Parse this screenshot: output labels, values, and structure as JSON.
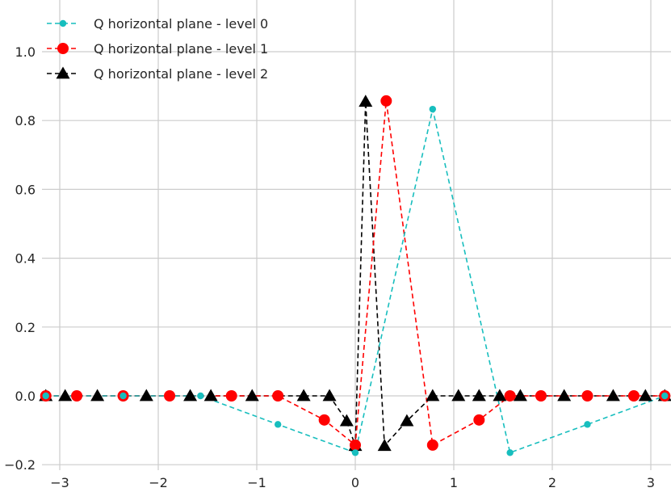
{
  "chart_data": {
    "type": "line",
    "title": "",
    "xlabel": "",
    "ylabel": "",
    "xlim": [
      -3.2,
      3.2
    ],
    "ylim": [
      -0.2,
      1.1
    ],
    "grid": true,
    "legend_position": "top-left",
    "x_ticks": [
      -3,
      -2,
      -1,
      0,
      1,
      2,
      3
    ],
    "x_tick_labels": [
      "−3",
      "−2",
      "−1",
      "0",
      "1",
      "2",
      "3"
    ],
    "y_ticks": [
      -0.2,
      0.0,
      0.2,
      0.4,
      0.6,
      0.8,
      1.0
    ],
    "y_tick_labels": [
      "−0.2",
      "0.0",
      "0.2",
      "0.4",
      "0.6",
      "0.8",
      "1.0"
    ],
    "series": [
      {
        "name": "Q horizontal plane - level 0",
        "color": "#17bebe",
        "marker": "circle-small",
        "line_style": "dashed",
        "x": [
          -3.1416,
          -2.3562,
          -1.5708,
          -0.7854,
          0.0,
          0.7854,
          1.5708,
          2.3562,
          3.1416
        ],
        "y": [
          0.0,
          0.0,
          0.0,
          -0.083,
          -0.165,
          0.833,
          -0.165,
          -0.083,
          0.0
        ]
      },
      {
        "name": "Q horizontal plane - level 1",
        "color": "#ff0000",
        "marker": "circle",
        "line_style": "dashed",
        "x": [
          -3.1416,
          -2.8274,
          -2.3562,
          -1.885,
          -1.2566,
          -0.7854,
          -0.3142,
          0.0,
          0.3142,
          0.7854,
          1.2566,
          1.5708,
          1.885,
          2.3562,
          2.8274,
          3.1416
        ],
        "y": [
          0.0,
          0.0,
          0.0,
          0.0,
          0.0,
          0.0,
          -0.07,
          -0.143,
          0.857,
          -0.143,
          -0.07,
          0.0,
          0.0,
          0.0,
          0.0,
          0.0
        ],
        "note_points": "endpoints at x = ±3.1416 are drawn with the level-0 marker on top"
      },
      {
        "name": "Q horizontal plane - level 2",
        "color": "#000000",
        "marker": "triangle",
        "line_style": "dashed",
        "x": [
          -3.1416,
          -2.9452,
          -2.6179,
          -2.1204,
          -1.6755,
          -1.4661,
          -1.0472,
          -0.5236,
          -0.2618,
          -0.0873,
          0.0,
          0.1047,
          0.2967,
          0.5236,
          0.7854,
          1.0472,
          1.2566,
          1.4661,
          1.6755,
          2.1204,
          2.6179,
          2.9452,
          3.1416
        ],
        "y": [
          0.0,
          0.0,
          0.0,
          0.0,
          0.0,
          0.0,
          0.0,
          0.0,
          0.0,
          -0.073,
          -0.145,
          0.855,
          -0.145,
          -0.073,
          0.0,
          0.0,
          0.0,
          0.0,
          0.0,
          0.0,
          0.0,
          0.0,
          0.0
        ]
      }
    ]
  }
}
